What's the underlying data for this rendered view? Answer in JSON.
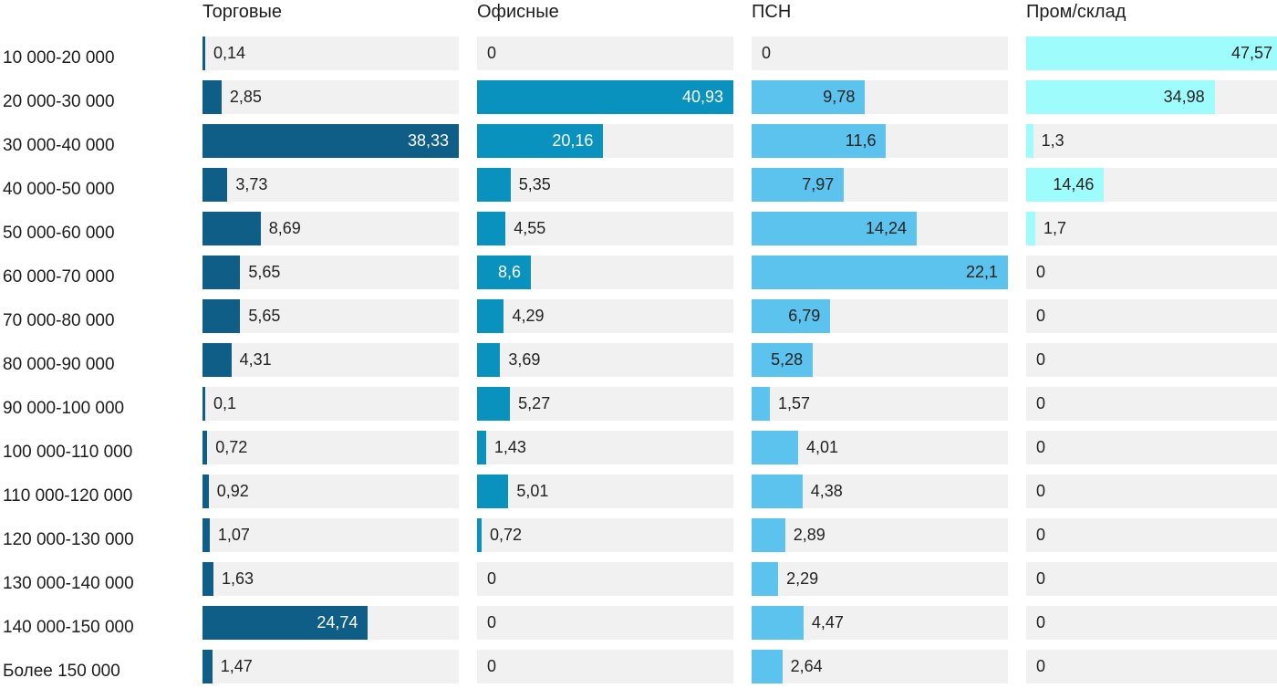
{
  "chart_data": {
    "type": "bar",
    "orientation": "horizontal",
    "layout": "split-bars-per-column, each column scaled to its own max value",
    "decimal_separator": ",",
    "track_color": "#f1f1f1",
    "text_color": "#1d1d1d",
    "zero_label": "0",
    "categories": [
      "10 000-20 000",
      "20 000-30 000",
      "30 000-40 000",
      "40 000-50 000",
      "50 000-60 000",
      "60 000-70 000",
      "70 000-80 000",
      "80 000-90 000",
      "90 000-100 000",
      "100 000-110 000",
      "110 000-120 000",
      "120 000-130 000",
      "130 000-140 000",
      "140 000-150 000",
      "Более 150 000"
    ],
    "series": [
      {
        "name": "Торговые",
        "color": "#0f5e87",
        "value_color_inside": "#ffffff",
        "max": 38.33,
        "values": [
          0.14,
          2.85,
          38.33,
          3.73,
          8.69,
          5.65,
          5.65,
          4.31,
          0.1,
          0.72,
          0.92,
          1.07,
          1.63,
          24.74,
          1.47
        ],
        "label_inside": [
          false,
          false,
          true,
          false,
          false,
          false,
          false,
          false,
          false,
          false,
          false,
          false,
          false,
          true,
          false
        ]
      },
      {
        "name": "Офисные",
        "color": "#0992be",
        "value_color_inside": "#ffffff",
        "max": 40.93,
        "values": [
          0,
          40.93,
          20.16,
          5.35,
          4.55,
          8.6,
          4.29,
          3.69,
          5.27,
          1.43,
          5.01,
          0.72,
          0,
          0,
          0
        ],
        "label_inside": [
          false,
          true,
          true,
          false,
          false,
          true,
          false,
          false,
          false,
          false,
          false,
          false,
          false,
          false,
          false
        ]
      },
      {
        "name": "ПСН",
        "color": "#5bc3ee",
        "value_color_inside": "#222222",
        "max": 22.1,
        "values": [
          0,
          9.78,
          11.6,
          7.97,
          14.24,
          22.1,
          6.79,
          5.28,
          1.57,
          4.01,
          4.38,
          2.89,
          2.29,
          4.47,
          2.64
        ],
        "label_inside": [
          false,
          true,
          true,
          true,
          true,
          true,
          true,
          true,
          false,
          false,
          false,
          false,
          false,
          false,
          false
        ]
      },
      {
        "name": "Пром/склад",
        "color": "#9ffcfc",
        "value_color_inside": "#222222",
        "max": 47.57,
        "values": [
          47.57,
          34.98,
          1.3,
          14.46,
          1.7,
          0,
          0,
          0,
          0,
          0,
          0,
          0,
          0,
          0,
          0
        ],
        "label_inside": [
          true,
          true,
          false,
          true,
          false,
          false,
          false,
          false,
          false,
          false,
          false,
          false,
          false,
          false,
          false
        ]
      }
    ]
  }
}
